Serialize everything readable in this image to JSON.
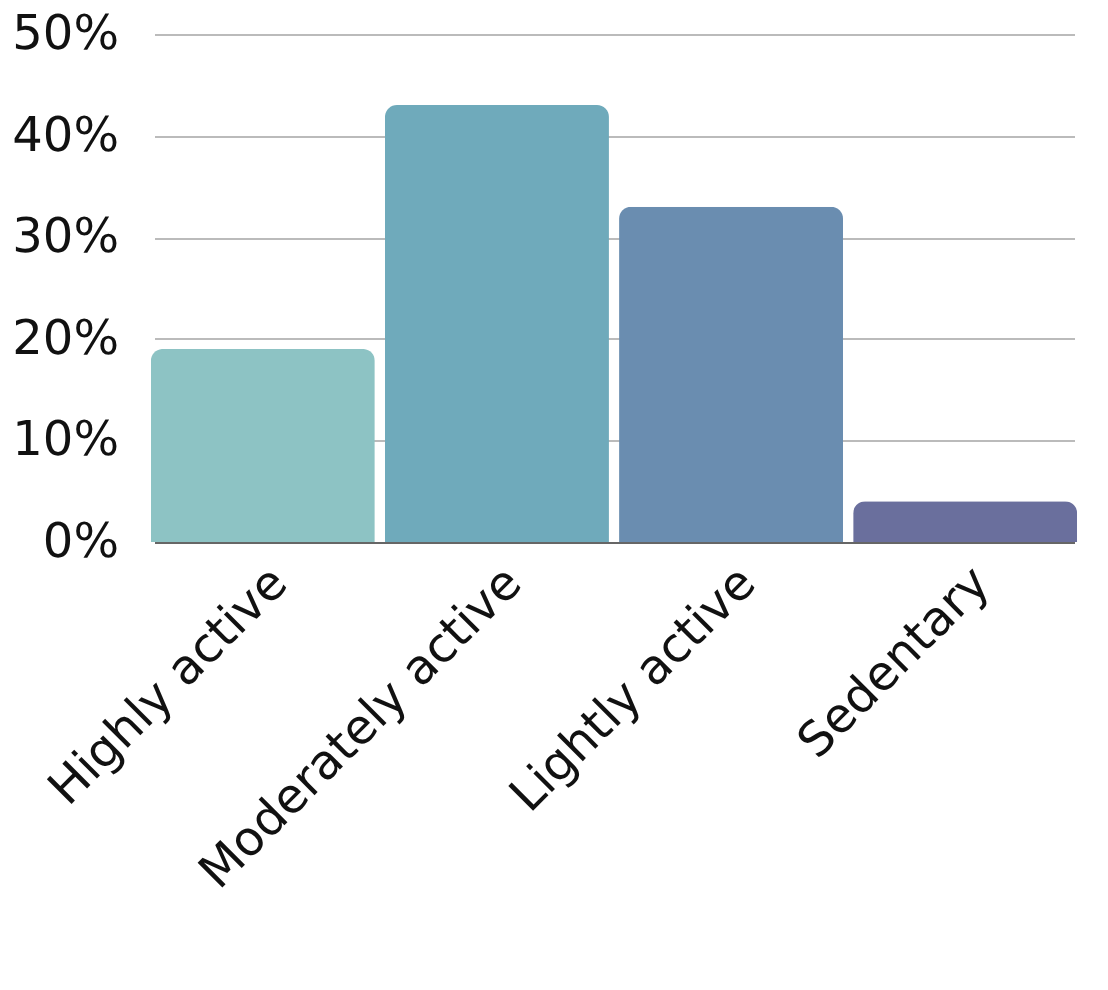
{
  "chart_data": {
    "type": "bar",
    "categories": [
      "Highly active",
      "Moderately active",
      "Lightly active",
      "Sedentary"
    ],
    "values": [
      19,
      43,
      33,
      4
    ],
    "colors": [
      "#8dc3c4",
      "#6faabb",
      "#6a8db0",
      "#6a6f9d"
    ],
    "ylim": [
      0,
      50
    ],
    "yticks": [
      {
        "value": 0,
        "label": "0%"
      },
      {
        "value": 10,
        "label": "10%"
      },
      {
        "value": 20,
        "label": "20%"
      },
      {
        "value": 30,
        "label": "30%"
      },
      {
        "value": 40,
        "label": "40%"
      },
      {
        "value": 50,
        "label": "50%"
      }
    ],
    "grid": "y",
    "legend": false
  }
}
